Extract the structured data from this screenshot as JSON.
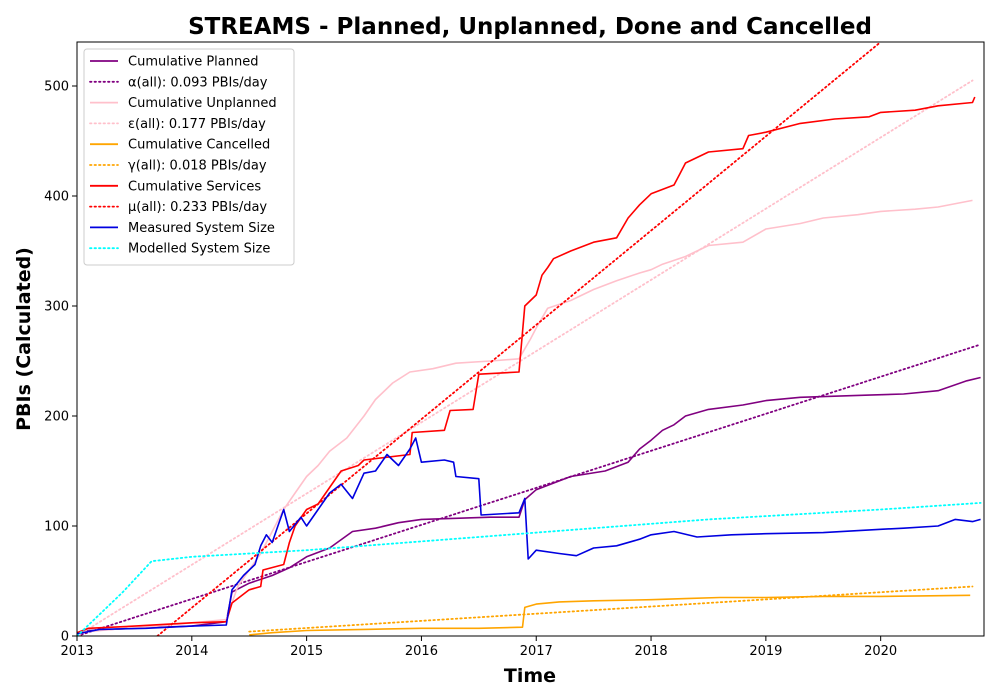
{
  "chart_data": {
    "type": "line",
    "title": "STREAMS - Planned, Unplanned, Done  and Cancelled",
    "xlabel": "Time",
    "ylabel": "PBIs (Calculated)",
    "xlim": [
      2013.0,
      2020.9
    ],
    "ylim": [
      0,
      540
    ],
    "x_ticks": [
      2013,
      2014,
      2015,
      2016,
      2017,
      2018,
      2019,
      2020
    ],
    "x_tick_labels": [
      "2013",
      "2014",
      "2015",
      "2016",
      "2017",
      "2018",
      "2019",
      "2020"
    ],
    "y_ticks": [
      0,
      100,
      200,
      300,
      400,
      500
    ],
    "y_tick_labels": [
      "0",
      "100",
      "200",
      "300",
      "400",
      "500"
    ],
    "grid": false,
    "legend_position": "top-left",
    "series": [
      {
        "name": "Cumulative Planned",
        "color": "#800080",
        "style": "solid",
        "points": [
          [
            2013.0,
            2
          ],
          [
            2013.1,
            5
          ],
          [
            2013.5,
            7
          ],
          [
            2014.0,
            9
          ],
          [
            2014.3,
            13
          ],
          [
            2014.35,
            40
          ],
          [
            2014.5,
            48
          ],
          [
            2014.7,
            55
          ],
          [
            2014.85,
            62
          ],
          [
            2015.0,
            72
          ],
          [
            2015.2,
            80
          ],
          [
            2015.4,
            95
          ],
          [
            2015.6,
            98
          ],
          [
            2015.8,
            103
          ],
          [
            2016.0,
            106
          ],
          [
            2016.3,
            107
          ],
          [
            2016.6,
            108
          ],
          [
            2016.85,
            108
          ],
          [
            2016.9,
            124
          ],
          [
            2017.0,
            133
          ],
          [
            2017.3,
            145
          ],
          [
            2017.6,
            150
          ],
          [
            2017.8,
            158
          ],
          [
            2017.9,
            170
          ],
          [
            2018.0,
            178
          ],
          [
            2018.1,
            187
          ],
          [
            2018.2,
            192
          ],
          [
            2018.3,
            200
          ],
          [
            2018.5,
            206
          ],
          [
            2018.8,
            210
          ],
          [
            2019.0,
            214
          ],
          [
            2019.3,
            217
          ],
          [
            2019.6,
            218
          ],
          [
            2019.9,
            219
          ],
          [
            2020.2,
            220
          ],
          [
            2020.5,
            223
          ],
          [
            2020.75,
            232
          ],
          [
            2020.87,
            235
          ]
        ]
      },
      {
        "name": "α(all): 0.093 PBIs/day",
        "color": "#800080",
        "style": "dotted",
        "points": [
          [
            2013.0,
            0
          ],
          [
            2020.87,
            265
          ]
        ]
      },
      {
        "name": "Cumulative Unplanned",
        "color": "#ffc0cb",
        "style": "solid",
        "points": [
          [
            2013.0,
            3
          ],
          [
            2013.3,
            6
          ],
          [
            2013.7,
            9
          ],
          [
            2014.0,
            12
          ],
          [
            2014.3,
            15
          ],
          [
            2014.4,
            45
          ],
          [
            2014.6,
            75
          ],
          [
            2014.8,
            115
          ],
          [
            2014.9,
            130
          ],
          [
            2015.0,
            145
          ],
          [
            2015.1,
            155
          ],
          [
            2015.2,
            168
          ],
          [
            2015.35,
            180
          ],
          [
            2015.5,
            200
          ],
          [
            2015.6,
            215
          ],
          [
            2015.75,
            230
          ],
          [
            2015.9,
            240
          ],
          [
            2016.1,
            243
          ],
          [
            2016.3,
            248
          ],
          [
            2016.6,
            250
          ],
          [
            2016.85,
            252
          ],
          [
            2016.95,
            270
          ],
          [
            2017.0,
            280
          ],
          [
            2017.1,
            298
          ],
          [
            2017.3,
            305
          ],
          [
            2017.5,
            315
          ],
          [
            2017.7,
            323
          ],
          [
            2017.9,
            330
          ],
          [
            2018.0,
            333
          ],
          [
            2018.1,
            338
          ],
          [
            2018.3,
            345
          ],
          [
            2018.5,
            355
          ],
          [
            2018.8,
            358
          ],
          [
            2019.0,
            370
          ],
          [
            2019.3,
            375
          ],
          [
            2019.5,
            380
          ],
          [
            2019.8,
            383
          ],
          [
            2020.0,
            386
          ],
          [
            2020.3,
            388
          ],
          [
            2020.5,
            390
          ],
          [
            2020.8,
            396
          ]
        ]
      },
      {
        "name": "ε(all): 0.177 PBIs/day",
        "color": "#ffc0cb",
        "style": "dotted",
        "points": [
          [
            2013.0,
            0
          ],
          [
            2020.8,
            505
          ]
        ]
      },
      {
        "name": "Cumulative Cancelled",
        "color": "#ffa500",
        "style": "solid",
        "points": [
          [
            2014.5,
            1
          ],
          [
            2014.7,
            3
          ],
          [
            2015.0,
            5
          ],
          [
            2015.5,
            6
          ],
          [
            2016.0,
            7
          ],
          [
            2016.5,
            7
          ],
          [
            2016.88,
            8
          ],
          [
            2016.9,
            26
          ],
          [
            2017.0,
            29
          ],
          [
            2017.2,
            31
          ],
          [
            2017.5,
            32
          ],
          [
            2018.0,
            33
          ],
          [
            2018.3,
            34
          ],
          [
            2018.6,
            35
          ],
          [
            2019.0,
            35
          ],
          [
            2019.5,
            36
          ],
          [
            2020.0,
            36
          ],
          [
            2020.78,
            37
          ]
        ]
      },
      {
        "name": "γ(all): 0.018 PBIs/day",
        "color": "#ffa500",
        "style": "dotted",
        "points": [
          [
            2014.5,
            4
          ],
          [
            2020.8,
            45
          ]
        ]
      },
      {
        "name": "Cumulative Services",
        "color": "#ff0000",
        "style": "solid",
        "points": [
          [
            2013.0,
            3
          ],
          [
            2013.1,
            7
          ],
          [
            2013.5,
            9
          ],
          [
            2014.0,
            12
          ],
          [
            2014.3,
            13
          ],
          [
            2014.35,
            30
          ],
          [
            2014.5,
            42
          ],
          [
            2014.6,
            45
          ],
          [
            2014.62,
            60
          ],
          [
            2014.8,
            65
          ],
          [
            2014.85,
            85
          ],
          [
            2014.9,
            100
          ],
          [
            2015.0,
            115
          ],
          [
            2015.1,
            120
          ],
          [
            2015.2,
            135
          ],
          [
            2015.3,
            150
          ],
          [
            2015.45,
            155
          ],
          [
            2015.5,
            160
          ],
          [
            2015.9,
            165
          ],
          [
            2015.92,
            185
          ],
          [
            2016.2,
            187
          ],
          [
            2016.25,
            205
          ],
          [
            2016.45,
            206
          ],
          [
            2016.5,
            238
          ],
          [
            2016.85,
            240
          ],
          [
            2016.9,
            300
          ],
          [
            2017.0,
            310
          ],
          [
            2017.05,
            328
          ],
          [
            2017.1,
            335
          ],
          [
            2017.15,
            343
          ],
          [
            2017.3,
            350
          ],
          [
            2017.5,
            358
          ],
          [
            2017.7,
            362
          ],
          [
            2017.8,
            380
          ],
          [
            2017.9,
            392
          ],
          [
            2018.0,
            402
          ],
          [
            2018.2,
            410
          ],
          [
            2018.25,
            420
          ],
          [
            2018.3,
            430
          ],
          [
            2018.5,
            440
          ],
          [
            2018.8,
            443
          ],
          [
            2018.85,
            455
          ],
          [
            2019.0,
            458
          ],
          [
            2019.3,
            466
          ],
          [
            2019.6,
            470
          ],
          [
            2019.9,
            472
          ],
          [
            2020.0,
            476
          ],
          [
            2020.3,
            478
          ],
          [
            2020.5,
            482
          ],
          [
            2020.8,
            485
          ],
          [
            2020.82,
            490
          ]
        ]
      },
      {
        "name": "μ(all): 0.233 PBIs/day",
        "color": "#ff0000",
        "style": "dotted",
        "points": [
          [
            2013.7,
            0
          ],
          [
            2020.0,
            540
          ]
        ]
      },
      {
        "name": "Measured System Size",
        "color": "#0000e0",
        "style": "solid",
        "points": [
          [
            2013.0,
            2
          ],
          [
            2013.2,
            6
          ],
          [
            2013.6,
            7
          ],
          [
            2014.0,
            9
          ],
          [
            2014.3,
            10
          ],
          [
            2014.35,
            42
          ],
          [
            2014.45,
            55
          ],
          [
            2014.55,
            65
          ],
          [
            2014.6,
            82
          ],
          [
            2014.65,
            92
          ],
          [
            2014.7,
            85
          ],
          [
            2014.75,
            100
          ],
          [
            2014.8,
            115
          ],
          [
            2014.85,
            95
          ],
          [
            2014.95,
            108
          ],
          [
            2015.0,
            100
          ],
          [
            2015.1,
            115
          ],
          [
            2015.2,
            130
          ],
          [
            2015.3,
            138
          ],
          [
            2015.4,
            125
          ],
          [
            2015.5,
            148
          ],
          [
            2015.6,
            150
          ],
          [
            2015.7,
            165
          ],
          [
            2015.8,
            155
          ],
          [
            2015.9,
            170
          ],
          [
            2015.95,
            180
          ],
          [
            2016.0,
            158
          ],
          [
            2016.2,
            160
          ],
          [
            2016.28,
            158
          ],
          [
            2016.3,
            145
          ],
          [
            2016.5,
            143
          ],
          [
            2016.52,
            110
          ],
          [
            2016.85,
            112
          ],
          [
            2016.9,
            125
          ],
          [
            2016.93,
            70
          ],
          [
            2017.0,
            78
          ],
          [
            2017.2,
            75
          ],
          [
            2017.35,
            73
          ],
          [
            2017.5,
            80
          ],
          [
            2017.7,
            82
          ],
          [
            2017.9,
            88
          ],
          [
            2018.0,
            92
          ],
          [
            2018.2,
            95
          ],
          [
            2018.4,
            90
          ],
          [
            2018.7,
            92
          ],
          [
            2019.0,
            93
          ],
          [
            2019.5,
            94
          ],
          [
            2020.0,
            97
          ],
          [
            2020.2,
            98
          ],
          [
            2020.5,
            100
          ],
          [
            2020.65,
            106
          ],
          [
            2020.8,
            104
          ],
          [
            2020.87,
            106
          ]
        ]
      },
      {
        "name": "Modelled System Size",
        "color": "#00ffff",
        "style": "dotted",
        "points": [
          [
            2013.0,
            0
          ],
          [
            2013.2,
            20
          ],
          [
            2013.4,
            40
          ],
          [
            2013.65,
            68
          ],
          [
            2014.0,
            72
          ],
          [
            2014.5,
            75
          ],
          [
            2015.0,
            78
          ],
          [
            2015.5,
            82
          ],
          [
            2016.0,
            86
          ],
          [
            2016.5,
            90
          ],
          [
            2017.0,
            94
          ],
          [
            2017.5,
            98
          ],
          [
            2018.0,
            102
          ],
          [
            2018.5,
            106
          ],
          [
            2019.0,
            109
          ],
          [
            2019.5,
            112
          ],
          [
            2020.0,
            115
          ],
          [
            2020.87,
            121
          ]
        ]
      }
    ]
  }
}
